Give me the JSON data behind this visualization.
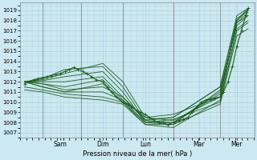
{
  "xlabel": "Pression niveau de la mer( hPa )",
  "ylim": [
    1006.5,
    1019.8
  ],
  "yticks": [
    1007,
    1008,
    1009,
    1010,
    1011,
    1012,
    1013,
    1014,
    1015,
    1016,
    1017,
    1018,
    1019
  ],
  "xlim": [
    0.0,
    1.05
  ],
  "day_labels": [
    "Sam",
    "Dim",
    "Lun",
    "Mar",
    "Mer"
  ],
  "day_positions": [
    0.18,
    0.37,
    0.56,
    0.8,
    0.97
  ],
  "day_vlines": [
    0.1,
    0.275,
    0.46,
    0.685,
    0.895
  ],
  "bg_color": "#cce8f0",
  "grid_color": "#aaccdd",
  "line_color": "#1a5c1a",
  "series": [
    {
      "x": [
        0.02,
        0.1,
        0.2,
        0.37,
        0.46,
        0.56,
        0.685,
        0.895,
        0.97,
        1.02
      ],
      "y": [
        1012.0,
        1012.2,
        1012.8,
        1013.8,
        1012.0,
        1008.5,
        1008.2,
        1010.5,
        1018.0,
        1019.2
      ]
    },
    {
      "x": [
        0.02,
        0.1,
        0.2,
        0.37,
        0.46,
        0.56,
        0.685,
        0.895,
        0.97,
        1.02
      ],
      "y": [
        1012.0,
        1012.3,
        1013.2,
        1013.5,
        1011.5,
        1008.2,
        1008.0,
        1011.0,
        1017.8,
        1018.8
      ]
    },
    {
      "x": [
        0.02,
        0.1,
        0.2,
        0.37,
        0.46,
        0.56,
        0.685,
        0.895,
        0.97,
        1.02
      ],
      "y": [
        1012.0,
        1012.1,
        1012.5,
        1013.0,
        1011.0,
        1008.0,
        1007.8,
        1011.2,
        1017.5,
        1018.5
      ]
    },
    {
      "x": [
        0.02,
        0.1,
        0.2,
        0.37,
        0.46,
        0.56,
        0.685,
        0.895,
        0.97,
        1.02
      ],
      "y": [
        1012.0,
        1012.0,
        1012.0,
        1012.5,
        1010.5,
        1008.3,
        1008.5,
        1011.5,
        1018.2,
        1019.0
      ]
    },
    {
      "x": [
        0.02,
        0.1,
        0.2,
        0.37,
        0.46,
        0.56,
        0.685,
        0.895,
        0.97,
        1.02
      ],
      "y": [
        1012.0,
        1011.8,
        1011.5,
        1012.2,
        1010.2,
        1008.0,
        1008.0,
        1010.8,
        1017.8,
        1018.5
      ]
    },
    {
      "x": [
        0.02,
        0.1,
        0.2,
        0.37,
        0.46,
        0.56,
        0.685,
        0.895,
        0.97,
        1.02
      ],
      "y": [
        1012.0,
        1011.5,
        1011.0,
        1011.8,
        1010.0,
        1007.8,
        1007.5,
        1010.2,
        1017.2,
        1018.0
      ]
    },
    {
      "x": [
        0.02,
        0.1,
        0.2,
        0.37,
        0.46,
        0.56,
        0.685,
        0.895,
        0.97,
        1.02
      ],
      "y": [
        1012.0,
        1011.8,
        1011.2,
        1011.5,
        1010.5,
        1008.2,
        1008.5,
        1011.5,
        1018.5,
        1019.2
      ]
    },
    {
      "x": [
        0.02,
        0.1,
        0.2,
        0.37,
        0.46,
        0.56,
        0.685,
        0.895,
        0.97,
        1.02
      ],
      "y": [
        1012.0,
        1011.5,
        1011.0,
        1011.0,
        1010.2,
        1008.5,
        1008.8,
        1010.5,
        1018.0,
        1019.0
      ]
    },
    {
      "x": [
        0.02,
        0.1,
        0.2,
        0.37,
        0.46,
        0.56,
        0.685,
        0.895,
        0.97,
        1.02
      ],
      "y": [
        1011.5,
        1011.2,
        1010.8,
        1010.5,
        1010.0,
        1008.0,
        1008.3,
        1010.0,
        1017.0,
        1017.8
      ]
    },
    {
      "x": [
        0.02,
        0.1,
        0.2,
        0.37,
        0.46,
        0.56,
        0.685,
        0.895,
        0.97,
        1.02
      ],
      "y": [
        1011.2,
        1011.0,
        1010.5,
        1010.2,
        1009.8,
        1007.8,
        1007.8,
        1009.8,
        1016.5,
        1017.2
      ]
    }
  ],
  "main_x": [
    0.02,
    0.04,
    0.06,
    0.08,
    0.1,
    0.12,
    0.14,
    0.16,
    0.18,
    0.2,
    0.22,
    0.24,
    0.26,
    0.28,
    0.3,
    0.32,
    0.34,
    0.37,
    0.39,
    0.41,
    0.43,
    0.46,
    0.48,
    0.5,
    0.52,
    0.54,
    0.56,
    0.58,
    0.6,
    0.62,
    0.64,
    0.66,
    0.685,
    0.71,
    0.73,
    0.75,
    0.77,
    0.79,
    0.81,
    0.83,
    0.85,
    0.87,
    0.895,
    0.91,
    0.93,
    0.95,
    0.97,
    0.99,
    1.01,
    1.02
  ],
  "main_y": [
    1011.8,
    1012.0,
    1012.2,
    1012.3,
    1012.4,
    1012.5,
    1012.6,
    1012.7,
    1012.8,
    1013.0,
    1013.2,
    1013.4,
    1013.2,
    1013.0,
    1012.8,
    1012.5,
    1012.2,
    1012.0,
    1011.5,
    1011.0,
    1010.5,
    1010.0,
    1009.8,
    1009.5,
    1009.2,
    1009.0,
    1008.8,
    1008.5,
    1008.2,
    1008.0,
    1008.0,
    1007.8,
    1008.0,
    1008.2,
    1008.3,
    1008.5,
    1009.0,
    1009.5,
    1010.0,
    1010.2,
    1010.3,
    1010.4,
    1010.5,
    1011.0,
    1012.0,
    1013.5,
    1015.5,
    1017.0,
    1018.5,
    1019.2
  ]
}
